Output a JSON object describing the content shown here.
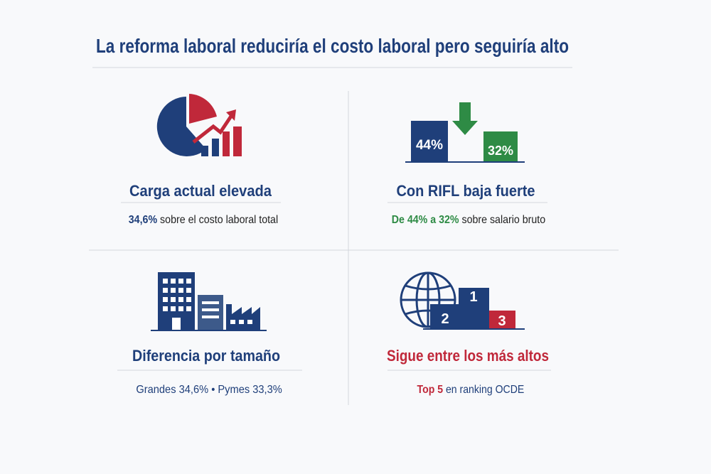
{
  "header": {
    "title": "La reforma laboral reduciría el costo laboral pero seguiría alto"
  },
  "panels": [
    {
      "heading": "Carga actual elevada",
      "detail": [
        {
          "text": "34,6%",
          "strong": true
        },
        {
          "text": " sobre el costo laboral total"
        }
      ]
    },
    {
      "heading": "Con RIFL baja fuerte",
      "detail": [
        {
          "text": "De 44% a 32%",
          "strong": true
        },
        {
          "text": " sobre salario bruto"
        }
      ],
      "icon_labels": [
        "44%",
        "32%"
      ]
    },
    {
      "heading": "Diferencia por tamaño",
      "detail": [
        {
          "text": "Grandes 34,6% • Pymes 33,3%",
          "strong": true
        }
      ]
    },
    {
      "heading": "Sigue entre los más altos",
      "detail": [
        {
          "text": "Top 5",
          "strong": true
        },
        {
          "text": " en ranking OCDE"
        }
      ],
      "icon_labels": [
        "1",
        "2",
        "3"
      ]
    }
  ]
}
